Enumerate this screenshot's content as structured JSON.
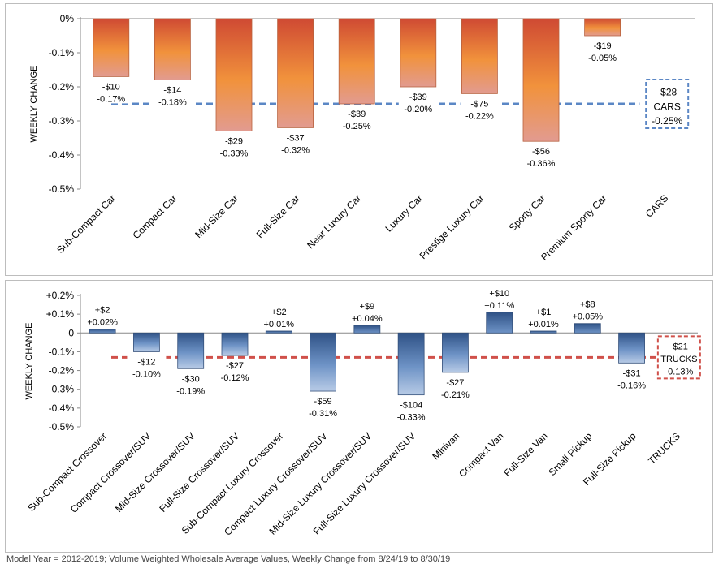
{
  "chart_data": [
    {
      "type": "bar",
      "ylabel": "WEEKLY CHANGE",
      "ylim": [
        -0.5,
        0
      ],
      "yticks": [
        0,
        -0.1,
        -0.2,
        -0.3,
        -0.4,
        -0.5
      ],
      "ytick_labels": [
        "0%",
        "-0.1%",
        "-0.2%",
        "-0.3%",
        "-0.4%",
        "-0.5%"
      ],
      "categories": [
        "Sub-Compact Car",
        "Compact Car",
        "Mid-Size Car",
        "Full-Size Car",
        "Near Luxury Car",
        "Luxury Car",
        "Prestige Luxury Car",
        "Sporty Car",
        "Premium Sporty Car",
        "CARS"
      ],
      "values": [
        -0.17,
        -0.18,
        -0.33,
        -0.32,
        -0.25,
        -0.2,
        -0.22,
        -0.36,
        -0.05,
        null
      ],
      "dollar_labels": [
        "-$10",
        "-$14",
        "-$29",
        "-$37",
        "-$39",
        "-$39",
        "-$75",
        "-$56",
        "-$19",
        ""
      ],
      "pct_labels": [
        "-0.17%",
        "-0.18%",
        "-0.33%",
        "-0.32%",
        "-0.25%",
        "-0.20%",
        "-0.22%",
        "-0.36%",
        "-0.05%",
        ""
      ],
      "average": {
        "value": -0.25,
        "dollar_label": "-$28",
        "name": "CARS",
        "pct_label": "-0.25%",
        "color": "#5b87c5"
      },
      "bar_gradient": [
        "#cf4a33",
        "#f1923c",
        "#e29b90"
      ]
    },
    {
      "type": "bar",
      "ylabel": "WEEKLY CHANGE",
      "ylim": [
        -0.5,
        0.2
      ],
      "yticks": [
        0.2,
        0.1,
        0,
        -0.1,
        -0.2,
        -0.3,
        -0.4,
        -0.5
      ],
      "ytick_labels": [
        "+0.2%",
        "+0.1%",
        "0",
        "-0.1%",
        "-0.2%",
        "-0.3%",
        "-0.4%",
        "-0.5%"
      ],
      "categories": [
        "Sub-Compact Crossover",
        "Compact Crossover/SUV",
        "Mid-Size Crossover/SUV",
        "Full-Size Crossover/SUV",
        "Sub-Compact Luxury Crossover",
        "Compact Luxury Crossover/SUV",
        "Mid-Size Luxury Crossover/SUV",
        "Full-Size Luxury Crossover/SUV",
        "Minivan",
        "Compact Van",
        "Full-Size Van",
        "Small Pickup",
        "Full-Size Pickup",
        "TRUCKS"
      ],
      "values": [
        0.02,
        -0.1,
        -0.19,
        -0.12,
        0.01,
        -0.31,
        0.04,
        -0.33,
        -0.21,
        0.11,
        0.01,
        0.05,
        -0.16,
        null
      ],
      "dollar_labels": [
        "+$2",
        "-$12",
        "-$30",
        "-$27",
        "+$2",
        "-$59",
        "+$9",
        "-$104",
        "-$27",
        "+$10",
        "+$1",
        "+$8",
        "-$31",
        ""
      ],
      "pct_labels": [
        "+0.02%",
        "-0.10%",
        "-0.19%",
        "-0.12%",
        "+0.01%",
        "-0.31%",
        "+0.04%",
        "-0.33%",
        "-0.21%",
        "+0.11%",
        "+0.01%",
        "+0.05%",
        "-0.16%",
        ""
      ],
      "average": {
        "value": -0.13,
        "dollar_label": "-$21",
        "name": "TRUCKS",
        "pct_label": "-0.13%",
        "color": "#d0504a"
      },
      "bar_gradient": [
        "#2f5286",
        "#6e93c6",
        "#b8cbe6"
      ]
    }
  ],
  "footnote": "Model Year = 2012-2019; Volume Weighted Wholesale Average Values, Weekly Change from 8/24/19 to 8/30/19"
}
